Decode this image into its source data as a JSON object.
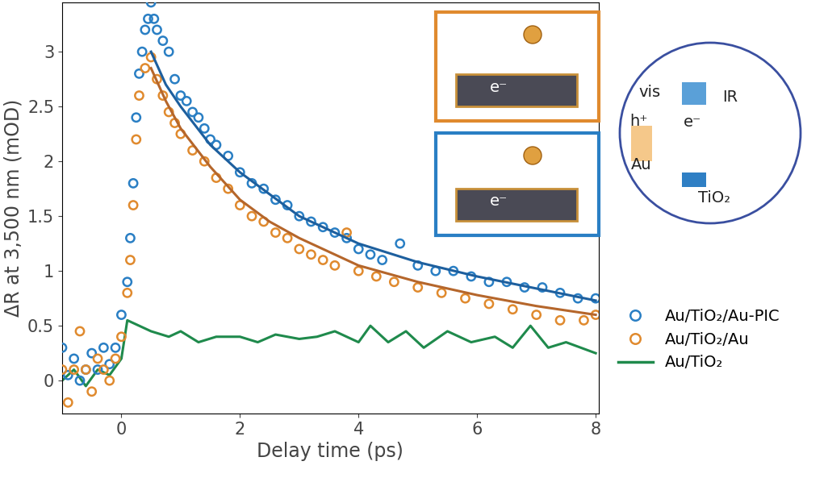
{
  "chart_data": {
    "type": "scatter",
    "x_label": "Delay time (ps)",
    "y_label": "ΔR at 3,500 nm (mOD)",
    "xlim": [
      -1,
      8.05
    ],
    "xticks": [
      0,
      2,
      4,
      6,
      8
    ],
    "ylim": [
      -0.3,
      3.45
    ],
    "yticks": [
      0,
      0.5,
      1,
      1.5,
      2,
      2.5,
      3
    ],
    "grid": false,
    "legend": "center left",
    "series": [
      {
        "name": "Au/TiO₂/Au-PIC",
        "type": "scatter",
        "marker": "o",
        "color": "#2a7fc4",
        "fit_color": "#1d5f9e",
        "x": [
          -1.0,
          -0.9,
          -0.8,
          -0.7,
          -0.6,
          -0.5,
          -0.4,
          -0.3,
          -0.2,
          -0.1,
          0.0,
          0.1,
          0.15,
          0.2,
          0.25,
          0.3,
          0.35,
          0.4,
          0.45,
          0.5,
          0.55,
          0.6,
          0.7,
          0.8,
          0.9,
          1.0,
          1.1,
          1.2,
          1.3,
          1.4,
          1.5,
          1.6,
          1.8,
          2.0,
          2.2,
          2.4,
          2.6,
          2.8,
          3.0,
          3.2,
          3.4,
          3.6,
          3.8,
          4.0,
          4.2,
          4.4,
          4.7,
          5.0,
          5.3,
          5.6,
          5.9,
          6.2,
          6.5,
          6.8,
          7.1,
          7.4,
          7.7,
          8.0
        ],
        "values": [
          0.3,
          0.05,
          0.2,
          0.0,
          0.1,
          0.25,
          0.1,
          0.3,
          0.15,
          0.3,
          0.6,
          0.9,
          1.3,
          1.8,
          2.4,
          2.8,
          3.0,
          3.2,
          3.3,
          3.45,
          3.3,
          3.2,
          3.1,
          3.0,
          2.75,
          2.6,
          2.55,
          2.45,
          2.4,
          2.3,
          2.2,
          2.15,
          2.05,
          1.9,
          1.8,
          1.75,
          1.65,
          1.6,
          1.5,
          1.45,
          1.4,
          1.35,
          1.3,
          1.2,
          1.15,
          1.1,
          1.25,
          1.05,
          1.0,
          1.0,
          0.95,
          0.9,
          0.9,
          0.85,
          0.85,
          0.8,
          0.75,
          0.75
        ],
        "fit_x": [
          0.5,
          0.75,
          1,
          1.5,
          2,
          2.5,
          3,
          4,
          5,
          6,
          7,
          8
        ],
        "fit_values": [
          3.0,
          2.7,
          2.5,
          2.15,
          1.9,
          1.7,
          1.5,
          1.25,
          1.08,
          0.95,
          0.84,
          0.73
        ]
      },
      {
        "name": "Au/TiO₂/Au",
        "type": "scatter",
        "marker": "o",
        "color": "#e08a2e",
        "fit_color": "#b5662b",
        "x": [
          -1.0,
          -0.9,
          -0.8,
          -0.7,
          -0.6,
          -0.5,
          -0.4,
          -0.3,
          -0.2,
          -0.1,
          0.0,
          0.1,
          0.15,
          0.2,
          0.25,
          0.3,
          0.4,
          0.5,
          0.6,
          0.7,
          0.8,
          0.9,
          1.0,
          1.2,
          1.4,
          1.6,
          1.8,
          2.0,
          2.2,
          2.4,
          2.6,
          2.8,
          3.0,
          3.2,
          3.4,
          3.6,
          3.8,
          4.0,
          4.3,
          4.6,
          5.0,
          5.4,
          5.8,
          6.2,
          6.6,
          7.0,
          7.4,
          7.8,
          8.0
        ],
        "values": [
          0.1,
          -0.2,
          0.1,
          0.45,
          0.1,
          -0.1,
          0.2,
          0.1,
          0.0,
          0.2,
          0.4,
          0.8,
          1.1,
          1.6,
          2.2,
          2.6,
          2.85,
          2.95,
          2.75,
          2.6,
          2.45,
          2.35,
          2.25,
          2.1,
          2.0,
          1.85,
          1.75,
          1.6,
          1.5,
          1.45,
          1.35,
          1.3,
          1.2,
          1.15,
          1.1,
          1.05,
          1.35,
          1.0,
          0.95,
          0.9,
          0.85,
          0.8,
          0.75,
          0.7,
          0.65,
          0.6,
          0.55,
          0.55,
          0.6
        ],
        "fit_x": [
          0.5,
          0.75,
          1,
          1.5,
          2,
          2.5,
          3,
          4,
          5,
          6,
          7,
          8
        ],
        "fit_values": [
          2.85,
          2.55,
          2.3,
          1.95,
          1.65,
          1.45,
          1.3,
          1.05,
          0.9,
          0.78,
          0.68,
          0.6
        ]
      },
      {
        "name": "Au/TiO₂",
        "type": "line",
        "line_style": "solid",
        "color": "#1f8a4c",
        "x": [
          -1.0,
          -0.8,
          -0.6,
          -0.4,
          -0.2,
          0.0,
          0.1,
          0.3,
          0.5,
          0.8,
          1.0,
          1.3,
          1.6,
          2.0,
          2.3,
          2.6,
          3.0,
          3.3,
          3.6,
          4.0,
          4.2,
          4.5,
          4.8,
          5.1,
          5.5,
          5.9,
          6.3,
          6.6,
          6.9,
          7.2,
          7.5,
          8.0
        ],
        "values": [
          0.0,
          0.1,
          -0.05,
          0.1,
          0.05,
          0.2,
          0.55,
          0.5,
          0.45,
          0.4,
          0.45,
          0.35,
          0.4,
          0.4,
          0.35,
          0.42,
          0.38,
          0.4,
          0.45,
          0.35,
          0.5,
          0.35,
          0.45,
          0.3,
          0.45,
          0.35,
          0.4,
          0.3,
          0.5,
          0.3,
          0.35,
          0.25
        ]
      }
    ],
    "annotations": {
      "panel_texts": [
        "e⁻",
        "e⁻"
      ],
      "diagram_texts": [
        "vis",
        "IR",
        "h⁺",
        "e⁻",
        "Au",
        "TiO₂"
      ]
    }
  }
}
